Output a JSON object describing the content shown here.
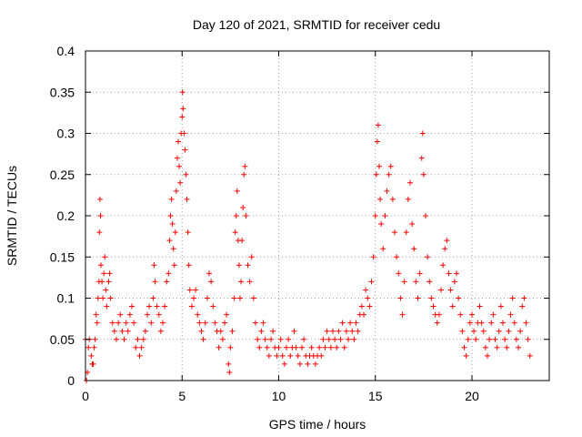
{
  "chart_data": {
    "type": "scatter",
    "title": "Day 120 of 2021, SRMTID for receiver cedu",
    "xlabel": "GPS time / hours",
    "ylabel": "SRMTID / TECUs",
    "xlim": [
      0,
      24
    ],
    "ylim": [
      0,
      0.4
    ],
    "x_ticks": [
      0,
      5,
      10,
      15,
      20
    ],
    "x_tick_labels": [
      "0",
      "5",
      "10",
      "15",
      "20"
    ],
    "y_ticks": [
      0,
      0.05,
      0.1,
      0.15,
      0.2,
      0.25,
      0.3,
      0.35,
      0.4
    ],
    "y_tick_labels": [
      "0",
      "0.05",
      "0.1",
      "0.15",
      "0.2",
      "0.25",
      "0.3",
      "0.35",
      "0.4"
    ],
    "grid": true,
    "marker": "+",
    "color": "#ff0000",
    "series": [
      {
        "name": "SRMTID",
        "points": [
          [
            0.0,
            0.05
          ],
          [
            0.05,
            0.0
          ],
          [
            0.1,
            0.01
          ],
          [
            0.15,
            0.04
          ],
          [
            0.2,
            0.05
          ],
          [
            0.3,
            0.03
          ],
          [
            0.35,
            0.02
          ],
          [
            0.4,
            0.02
          ],
          [
            0.45,
            0.04
          ],
          [
            0.5,
            0.05
          ],
          [
            0.55,
            0.08
          ],
          [
            0.6,
            0.07
          ],
          [
            0.65,
            0.1
          ],
          [
            0.7,
            0.12
          ],
          [
            0.72,
            0.18
          ],
          [
            0.75,
            0.22
          ],
          [
            0.78,
            0.2
          ],
          [
            0.8,
            0.14
          ],
          [
            0.85,
            0.12
          ],
          [
            0.9,
            0.1
          ],
          [
            0.95,
            0.13
          ],
          [
            1.0,
            0.15
          ],
          [
            1.05,
            0.11
          ],
          [
            1.1,
            0.09
          ],
          [
            1.2,
            0.12
          ],
          [
            1.25,
            0.13
          ],
          [
            1.3,
            0.1
          ],
          [
            1.4,
            0.07
          ],
          [
            1.5,
            0.06
          ],
          [
            1.6,
            0.05
          ],
          [
            1.7,
            0.07
          ],
          [
            1.8,
            0.08
          ],
          [
            1.9,
            0.06
          ],
          [
            2.0,
            0.05
          ],
          [
            2.1,
            0.07
          ],
          [
            2.2,
            0.06
          ],
          [
            2.3,
            0.08
          ],
          [
            2.4,
            0.09
          ],
          [
            2.5,
            0.07
          ],
          [
            2.6,
            0.04
          ],
          [
            2.7,
            0.05
          ],
          [
            2.8,
            0.03
          ],
          [
            2.9,
            0.04
          ],
          [
            3.0,
            0.05
          ],
          [
            3.1,
            0.06
          ],
          [
            3.2,
            0.08
          ],
          [
            3.3,
            0.09
          ],
          [
            3.4,
            0.07
          ],
          [
            3.5,
            0.1
          ],
          [
            3.55,
            0.14
          ],
          [
            3.6,
            0.12
          ],
          [
            3.7,
            0.09
          ],
          [
            3.8,
            0.08
          ],
          [
            3.9,
            0.06
          ],
          [
            4.0,
            0.07
          ],
          [
            4.1,
            0.09
          ],
          [
            4.2,
            0.12
          ],
          [
            4.3,
            0.13
          ],
          [
            4.35,
            0.17
          ],
          [
            4.4,
            0.2
          ],
          [
            4.45,
            0.22
          ],
          [
            4.5,
            0.19
          ],
          [
            4.55,
            0.16
          ],
          [
            4.6,
            0.14
          ],
          [
            4.65,
            0.18
          ],
          [
            4.7,
            0.23
          ],
          [
            4.75,
            0.27
          ],
          [
            4.8,
            0.29
          ],
          [
            4.85,
            0.26
          ],
          [
            4.9,
            0.24
          ],
          [
            4.95,
            0.3
          ],
          [
            5.0,
            0.32
          ],
          [
            5.02,
            0.35
          ],
          [
            5.05,
            0.33
          ],
          [
            5.1,
            0.3
          ],
          [
            5.15,
            0.28
          ],
          [
            5.2,
            0.25
          ],
          [
            5.25,
            0.22
          ],
          [
            5.3,
            0.18
          ],
          [
            5.35,
            0.14
          ],
          [
            5.4,
            0.11
          ],
          [
            5.5,
            0.09
          ],
          [
            5.6,
            0.1
          ],
          [
            5.7,
            0.11
          ],
          [
            5.8,
            0.08
          ],
          [
            5.9,
            0.07
          ],
          [
            6.0,
            0.06
          ],
          [
            6.1,
            0.05
          ],
          [
            6.2,
            0.07
          ],
          [
            6.3,
            0.1
          ],
          [
            6.4,
            0.13
          ],
          [
            6.5,
            0.12
          ],
          [
            6.6,
            0.09
          ],
          [
            6.7,
            0.07
          ],
          [
            6.8,
            0.06
          ],
          [
            6.9,
            0.04
          ],
          [
            7.0,
            0.06
          ],
          [
            7.1,
            0.05
          ],
          [
            7.2,
            0.07
          ],
          [
            7.3,
            0.08
          ],
          [
            7.4,
            0.02
          ],
          [
            7.45,
            0.01
          ],
          [
            7.5,
            0.04
          ],
          [
            7.6,
            0.06
          ],
          [
            7.7,
            0.1
          ],
          [
            7.75,
            0.18
          ],
          [
            7.8,
            0.2
          ],
          [
            7.85,
            0.23
          ],
          [
            7.9,
            0.17
          ],
          [
            7.95,
            0.14
          ],
          [
            8.0,
            0.1
          ],
          [
            8.05,
            0.12
          ],
          [
            8.1,
            0.17
          ],
          [
            8.15,
            0.21
          ],
          [
            8.2,
            0.25
          ],
          [
            8.25,
            0.26
          ],
          [
            8.3,
            0.2
          ],
          [
            8.4,
            0.14
          ],
          [
            8.5,
            0.12
          ],
          [
            8.6,
            0.15
          ],
          [
            8.7,
            0.1
          ],
          [
            8.8,
            0.07
          ],
          [
            8.9,
            0.05
          ],
          [
            9.0,
            0.04
          ],
          [
            9.1,
            0.06
          ],
          [
            9.2,
            0.07
          ],
          [
            9.3,
            0.05
          ],
          [
            9.4,
            0.04
          ],
          [
            9.5,
            0.03
          ],
          [
            9.6,
            0.05
          ],
          [
            9.7,
            0.06
          ],
          [
            9.8,
            0.04
          ],
          [
            9.9,
            0.03
          ],
          [
            10.0,
            0.04
          ],
          [
            10.1,
            0.05
          ],
          [
            10.2,
            0.03
          ],
          [
            10.3,
            0.02
          ],
          [
            10.4,
            0.04
          ],
          [
            10.5,
            0.05
          ],
          [
            10.6,
            0.03
          ],
          [
            10.7,
            0.04
          ],
          [
            10.8,
            0.06
          ],
          [
            10.9,
            0.04
          ],
          [
            11.0,
            0.03
          ],
          [
            11.1,
            0.02
          ],
          [
            11.2,
            0.04
          ],
          [
            11.3,
            0.05
          ],
          [
            11.4,
            0.03
          ],
          [
            11.5,
            0.02
          ],
          [
            11.6,
            0.03
          ],
          [
            11.7,
            0.04
          ],
          [
            11.8,
            0.03
          ],
          [
            11.9,
            0.02
          ],
          [
            12.0,
            0.03
          ],
          [
            12.1,
            0.04
          ],
          [
            12.2,
            0.03
          ],
          [
            12.3,
            0.05
          ],
          [
            12.4,
            0.04
          ],
          [
            12.5,
            0.06
          ],
          [
            12.6,
            0.05
          ],
          [
            12.7,
            0.04
          ],
          [
            12.8,
            0.06
          ],
          [
            12.9,
            0.05
          ],
          [
            13.0,
            0.04
          ],
          [
            13.1,
            0.06
          ],
          [
            13.2,
            0.05
          ],
          [
            13.3,
            0.07
          ],
          [
            13.4,
            0.04
          ],
          [
            13.5,
            0.06
          ],
          [
            13.6,
            0.05
          ],
          [
            13.7,
            0.07
          ],
          [
            13.8,
            0.06
          ],
          [
            13.9,
            0.05
          ],
          [
            14.0,
            0.07
          ],
          [
            14.1,
            0.06
          ],
          [
            14.2,
            0.08
          ],
          [
            14.3,
            0.09
          ],
          [
            14.4,
            0.08
          ],
          [
            14.5,
            0.11
          ],
          [
            14.6,
            0.1
          ],
          [
            14.7,
            0.09
          ],
          [
            14.8,
            0.12
          ],
          [
            14.9,
            0.15
          ],
          [
            15.0,
            0.2
          ],
          [
            15.05,
            0.25
          ],
          [
            15.1,
            0.29
          ],
          [
            15.15,
            0.31
          ],
          [
            15.2,
            0.26
          ],
          [
            15.25,
            0.22
          ],
          [
            15.3,
            0.19
          ],
          [
            15.4,
            0.16
          ],
          [
            15.5,
            0.2
          ],
          [
            15.6,
            0.23
          ],
          [
            15.7,
            0.25
          ],
          [
            15.8,
            0.26
          ],
          [
            15.9,
            0.22
          ],
          [
            16.0,
            0.18
          ],
          [
            16.1,
            0.15
          ],
          [
            16.2,
            0.13
          ],
          [
            16.3,
            0.1
          ],
          [
            16.4,
            0.08
          ],
          [
            16.5,
            0.12
          ],
          [
            16.6,
            0.18
          ],
          [
            16.7,
            0.22
          ],
          [
            16.8,
            0.24
          ],
          [
            16.9,
            0.19
          ],
          [
            17.0,
            0.16
          ],
          [
            17.1,
            0.12
          ],
          [
            17.2,
            0.1
          ],
          [
            17.3,
            0.13
          ],
          [
            17.4,
            0.27
          ],
          [
            17.45,
            0.3
          ],
          [
            17.5,
            0.25
          ],
          [
            17.6,
            0.2
          ],
          [
            17.7,
            0.15
          ],
          [
            17.8,
            0.12
          ],
          [
            17.9,
            0.1
          ],
          [
            18.0,
            0.09
          ],
          [
            18.1,
            0.08
          ],
          [
            18.2,
            0.07
          ],
          [
            18.3,
            0.08
          ],
          [
            18.4,
            0.11
          ],
          [
            18.5,
            0.14
          ],
          [
            18.6,
            0.16
          ],
          [
            18.7,
            0.17
          ],
          [
            18.8,
            0.13
          ],
          [
            18.9,
            0.11
          ],
          [
            19.0,
            0.09
          ],
          [
            19.1,
            0.12
          ],
          [
            19.2,
            0.13
          ],
          [
            19.3,
            0.1
          ],
          [
            19.4,
            0.08
          ],
          [
            19.5,
            0.06
          ],
          [
            19.6,
            0.04
          ],
          [
            19.7,
            0.03
          ],
          [
            19.8,
            0.05
          ],
          [
            19.9,
            0.07
          ],
          [
            20.0,
            0.08
          ],
          [
            20.1,
            0.06
          ],
          [
            20.2,
            0.05
          ],
          [
            20.3,
            0.07
          ],
          [
            20.4,
            0.09
          ],
          [
            20.5,
            0.07
          ],
          [
            20.6,
            0.06
          ],
          [
            20.7,
            0.04
          ],
          [
            20.8,
            0.03
          ],
          [
            20.9,
            0.05
          ],
          [
            21.0,
            0.07
          ],
          [
            21.1,
            0.08
          ],
          [
            21.2,
            0.05
          ],
          [
            21.3,
            0.04
          ],
          [
            21.4,
            0.06
          ],
          [
            21.5,
            0.09
          ],
          [
            21.6,
            0.07
          ],
          [
            21.7,
            0.05
          ],
          [
            21.8,
            0.04
          ],
          [
            21.9,
            0.06
          ],
          [
            22.0,
            0.08
          ],
          [
            22.1,
            0.1
          ],
          [
            22.2,
            0.07
          ],
          [
            22.3,
            0.05
          ],
          [
            22.4,
            0.04
          ],
          [
            22.5,
            0.06
          ],
          [
            22.6,
            0.09
          ],
          [
            22.7,
            0.1
          ],
          [
            22.8,
            0.07
          ],
          [
            22.9,
            0.05
          ],
          [
            23.0,
            0.03
          ]
        ]
      }
    ]
  }
}
